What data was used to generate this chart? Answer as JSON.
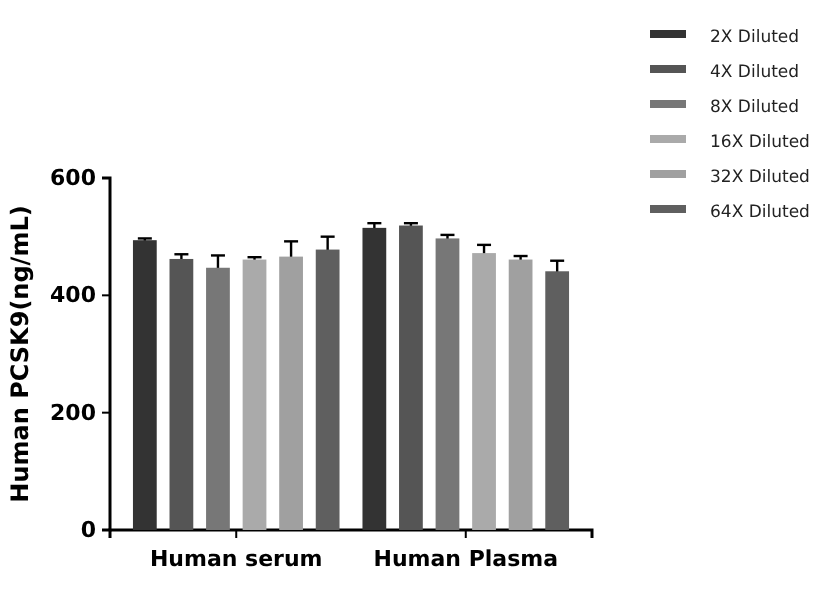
{
  "chart_data": {
    "type": "bar",
    "ylabel": "Human PCSK9(ng/mL)",
    "categories": [
      "Human serum",
      "Human Plasma"
    ],
    "ylim": [
      0,
      600
    ],
    "yticks": [
      0,
      200,
      400,
      600
    ],
    "legend": "top right",
    "series": [
      {
        "name": "2X Diluted",
        "color": "#333333",
        "values": [
          494,
          515
        ],
        "errors": [
          3,
          8
        ]
      },
      {
        "name": "4X Diluted",
        "color": "#555555",
        "values": [
          462,
          519
        ],
        "errors": [
          8,
          4
        ]
      },
      {
        "name": "8X Diluted",
        "color": "#777777",
        "values": [
          447,
          497
        ],
        "errors": [
          21,
          6
        ]
      },
      {
        "name": "16X Diluted",
        "color": "#aaaaaa",
        "values": [
          461,
          472
        ],
        "errors": [
          4,
          14
        ]
      },
      {
        "name": "32X Diluted",
        "color": "#a0a0a0",
        "values": [
          466,
          461
        ],
        "errors": [
          26,
          6
        ]
      },
      {
        "name": "64X Diluted",
        "color": "#5f5f5f",
        "values": [
          478,
          441
        ],
        "errors": [
          22,
          18
        ]
      }
    ]
  }
}
